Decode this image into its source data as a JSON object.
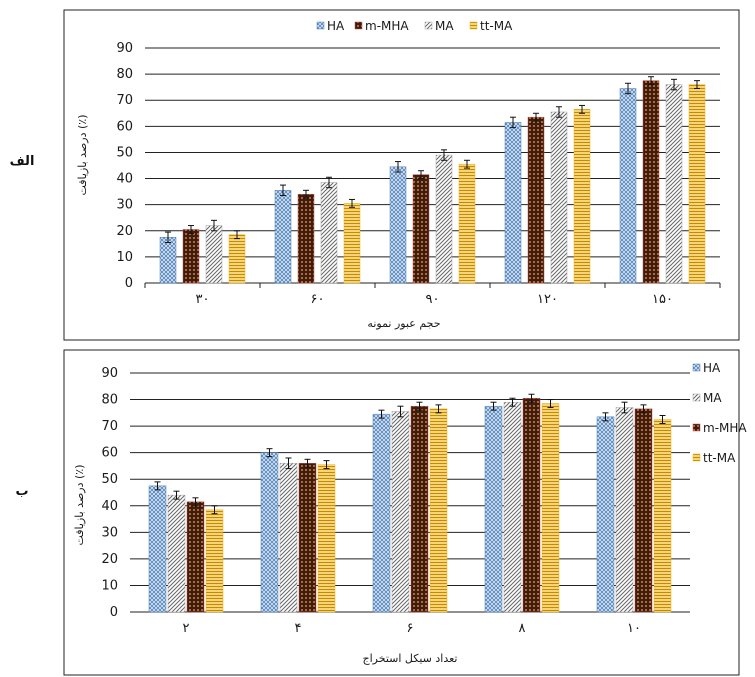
{
  "chart_data": [
    {
      "type": "bar",
      "panel_label": "الف",
      "categories": [
        "۳۰",
        "۶۰",
        "۹۰",
        "۱۲۰",
        "۱۵۰"
      ],
      "series": [
        {
          "name": "HA",
          "values": [
            17.5,
            35.5,
            44.5,
            61.5,
            74.5
          ],
          "errors": [
            2,
            2,
            2,
            2,
            2
          ]
        },
        {
          "name": "m-MHA",
          "values": [
            20.5,
            34,
            41.5,
            63.5,
            77.5
          ],
          "errors": [
            1.5,
            1.5,
            1.5,
            1.5,
            1.5
          ]
        },
        {
          "name": "MA",
          "values": [
            22,
            38.5,
            49,
            65.5,
            76
          ],
          "errors": [
            2,
            2,
            2,
            2,
            2
          ]
        },
        {
          "name": "tt-MA",
          "values": [
            18.5,
            30.5,
            45.5,
            66.5,
            76
          ],
          "errors": [
            1.5,
            1.5,
            1.5,
            1.5,
            1.5
          ]
        }
      ],
      "xlabel": "حجم عبور نمونه",
      "ylabel": "درصد بازیافت (٪)",
      "ylim": [
        0,
        90
      ],
      "yticks": [
        0,
        10,
        20,
        30,
        40,
        50,
        60,
        70,
        80,
        90
      ],
      "legend": "top"
    },
    {
      "type": "bar",
      "panel_label": "ب",
      "categories": [
        "۲",
        "۴",
        "۶",
        "۸",
        "۱۰"
      ],
      "series": [
        {
          "name": "HA",
          "values": [
            47.5,
            60,
            74.5,
            77.5,
            73.5
          ],
          "errors": [
            1.5,
            1.5,
            1.5,
            1.5,
            1.5
          ]
        },
        {
          "name": "MA",
          "values": [
            44,
            56,
            75.5,
            79,
            77
          ],
          "errors": [
            1.5,
            2,
            2,
            1.5,
            2
          ]
        },
        {
          "name": "m-MHA",
          "values": [
            41.5,
            56,
            77.5,
            80.5,
            76.5
          ],
          "errors": [
            1.5,
            1.5,
            1.5,
            1.5,
            1.5
          ]
        },
        {
          "name": "tt-MA",
          "values": [
            38.5,
            55.5,
            76.5,
            78.5,
            72.5
          ],
          "errors": [
            1.5,
            1.5,
            1.5,
            1.5,
            1.5
          ]
        }
      ],
      "xlabel": "تعداد سیکل استخراج",
      "ylabel": "درصد بازیافت (٪)",
      "ylim": [
        0,
        90
      ],
      "yticks": [
        0,
        10,
        20,
        30,
        40,
        50,
        60,
        70,
        80,
        90
      ],
      "legend": "right"
    }
  ],
  "colors": {
    "HA": "#4f81bd",
    "m-MHA": "#c0504d",
    "MA": "#a6a6a6",
    "tt-MA": "#f0b323"
  }
}
